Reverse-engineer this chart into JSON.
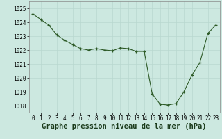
{
  "x": [
    0,
    1,
    2,
    3,
    4,
    5,
    6,
    7,
    8,
    9,
    10,
    11,
    12,
    13,
    14,
    15,
    16,
    17,
    18,
    19,
    20,
    21,
    22,
    23
  ],
  "y": [
    1024.6,
    1024.2,
    1023.8,
    1023.1,
    1022.7,
    1022.4,
    1022.1,
    1022.0,
    1022.1,
    1022.0,
    1021.95,
    1022.15,
    1022.1,
    1021.9,
    1021.9,
    1018.85,
    1018.1,
    1018.05,
    1018.15,
    1019.0,
    1020.2,
    1021.1,
    1023.2,
    1023.8
  ],
  "ylim": [
    1017.5,
    1025.5
  ],
  "yticks": [
    1018,
    1019,
    1020,
    1021,
    1022,
    1023,
    1024,
    1025
  ],
  "xlim": [
    -0.5,
    23.5
  ],
  "xticks": [
    0,
    1,
    2,
    3,
    4,
    5,
    6,
    7,
    8,
    9,
    10,
    11,
    12,
    13,
    14,
    15,
    16,
    17,
    18,
    19,
    20,
    21,
    22,
    23
  ],
  "line_color": "#2d5a27",
  "marker": "+",
  "bg_color": "#cce8e0",
  "grid_color": "#b8d8cf",
  "xlabel": "Graphe pression niveau de la mer (hPa)",
  "xlabel_fontsize": 7.5,
  "tick_fontsize": 5.5,
  "fig_bg": "#cce8e0",
  "linewidth": 0.8,
  "markersize": 3.5
}
